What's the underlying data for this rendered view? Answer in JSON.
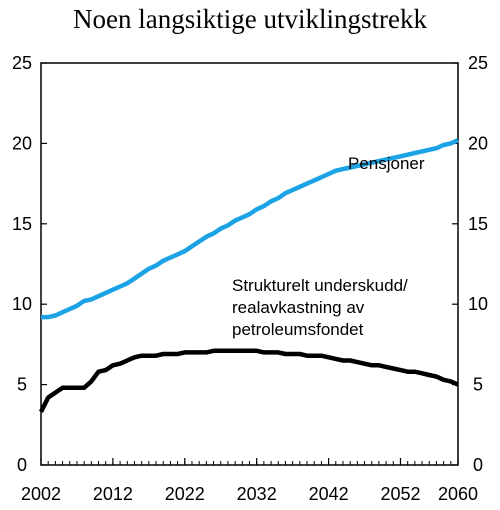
{
  "chart_data": {
    "type": "line",
    "title": "Noen langsiktige utviklingstrekk",
    "xlabel": "",
    "ylabel": "",
    "xlim": [
      2002,
      2060
    ],
    "ylim": [
      0,
      25
    ],
    "x_ticks": [
      "2002",
      "2012",
      "2022",
      "2032",
      "2042",
      "2052",
      "2060"
    ],
    "y_ticks": [
      "0",
      "5",
      "10",
      "15",
      "20",
      "25"
    ],
    "grid": false,
    "series": [
      {
        "name": "Pensjoner",
        "color": "#1ba3e6",
        "x": [
          2002,
          2003,
          2004,
          2005,
          2006,
          2007,
          2008,
          2009,
          2010,
          2011,
          2012,
          2013,
          2014,
          2015,
          2016,
          2017,
          2018,
          2019,
          2020,
          2021,
          2022,
          2023,
          2024,
          2025,
          2026,
          2027,
          2028,
          2029,
          2030,
          2031,
          2032,
          2033,
          2034,
          2035,
          2036,
          2037,
          2038,
          2039,
          2040,
          2041,
          2042,
          2043,
          2044,
          2045,
          2046,
          2047,
          2048,
          2049,
          2050,
          2051,
          2052,
          2053,
          2054,
          2055,
          2056,
          2057,
          2058,
          2059,
          2060
        ],
        "values": [
          9.2,
          9.2,
          9.3,
          9.5,
          9.7,
          9.9,
          10.2,
          10.3,
          10.5,
          10.7,
          10.9,
          11.1,
          11.3,
          11.6,
          11.9,
          12.2,
          12.4,
          12.7,
          12.9,
          13.1,
          13.3,
          13.6,
          13.9,
          14.2,
          14.4,
          14.7,
          14.9,
          15.2,
          15.4,
          15.6,
          15.9,
          16.1,
          16.4,
          16.6,
          16.9,
          17.1,
          17.3,
          17.5,
          17.7,
          17.9,
          18.1,
          18.3,
          18.4,
          18.5,
          18.6,
          18.7,
          18.8,
          18.9,
          19.0,
          19.1,
          19.2,
          19.3,
          19.4,
          19.5,
          19.6,
          19.7,
          19.9,
          20.0,
          20.2
        ]
      },
      {
        "name": "Strukturelt underskudd/ realavkastning av petroleumsfondet",
        "color": "#000000",
        "x": [
          2002,
          2003,
          2004,
          2005,
          2006,
          2007,
          2008,
          2009,
          2010,
          2011,
          2012,
          2013,
          2014,
          2015,
          2016,
          2017,
          2018,
          2019,
          2020,
          2021,
          2022,
          2023,
          2024,
          2025,
          2026,
          2027,
          2028,
          2029,
          2030,
          2031,
          2032,
          2033,
          2034,
          2035,
          2036,
          2037,
          2038,
          2039,
          2040,
          2041,
          2042,
          2043,
          2044,
          2045,
          2046,
          2047,
          2048,
          2049,
          2050,
          2051,
          2052,
          2053,
          2054,
          2055,
          2056,
          2057,
          2058,
          2059,
          2060
        ],
        "values": [
          3.3,
          4.2,
          4.5,
          4.8,
          4.8,
          4.8,
          4.8,
          5.2,
          5.8,
          5.9,
          6.2,
          6.3,
          6.5,
          6.7,
          6.8,
          6.8,
          6.8,
          6.9,
          6.9,
          6.9,
          7.0,
          7.0,
          7.0,
          7.0,
          7.1,
          7.1,
          7.1,
          7.1,
          7.1,
          7.1,
          7.1,
          7.0,
          7.0,
          7.0,
          6.9,
          6.9,
          6.9,
          6.8,
          6.8,
          6.8,
          6.7,
          6.6,
          6.5,
          6.5,
          6.4,
          6.3,
          6.2,
          6.2,
          6.1,
          6.0,
          5.9,
          5.8,
          5.8,
          5.7,
          5.6,
          5.5,
          5.3,
          5.2,
          5.0
        ]
      }
    ],
    "annotations": [
      {
        "series": 0,
        "lines": [
          "Pensjoner"
        ]
      },
      {
        "series": 1,
        "lines": [
          "Strukturelt underskudd/",
          "realavkastning av",
          "petroleumsfondet"
        ]
      }
    ]
  }
}
